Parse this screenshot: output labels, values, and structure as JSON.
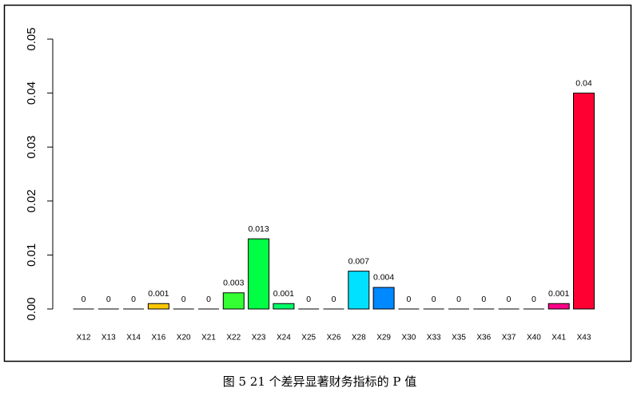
{
  "chart_data": {
    "type": "bar",
    "caption": "图 5   21 个差异显著财务指标的 P 值",
    "categories": [
      "X12",
      "X13",
      "X14",
      "X16",
      "X20",
      "X21",
      "X22",
      "X23",
      "X24",
      "X25",
      "X26",
      "X28",
      "X29",
      "X30",
      "X33",
      "X35",
      "X36",
      "X37",
      "X40",
      "X41",
      "X43"
    ],
    "values": [
      0,
      0,
      0,
      0.001,
      0,
      0,
      0.003,
      0.013,
      0.001,
      0,
      0,
      0.007,
      0.004,
      0,
      0,
      0,
      0,
      0,
      0,
      0.001,
      0.04
    ],
    "colors": [
      "#FF4C00",
      "#FF8C00",
      "#FFB000",
      "#FFC800",
      "#E0FF00",
      "#90FF00",
      "#33FF33",
      "#00FF44",
      "#00FF66",
      "#00FFAA",
      "#00FFE0",
      "#00E0FF",
      "#0088FF",
      "#0044FF",
      "#2200FF",
      "#6600FF",
      "#AA00FF",
      "#EE00FF",
      "#FF00BB",
      "#FF0088",
      "#FF0033"
    ],
    "ylim": [
      0,
      0.05
    ],
    "yticks": [
      {
        "value": 0,
        "label": "0.00"
      },
      0.01,
      0.02,
      0.03,
      0.04,
      0.05
    ]
  }
}
